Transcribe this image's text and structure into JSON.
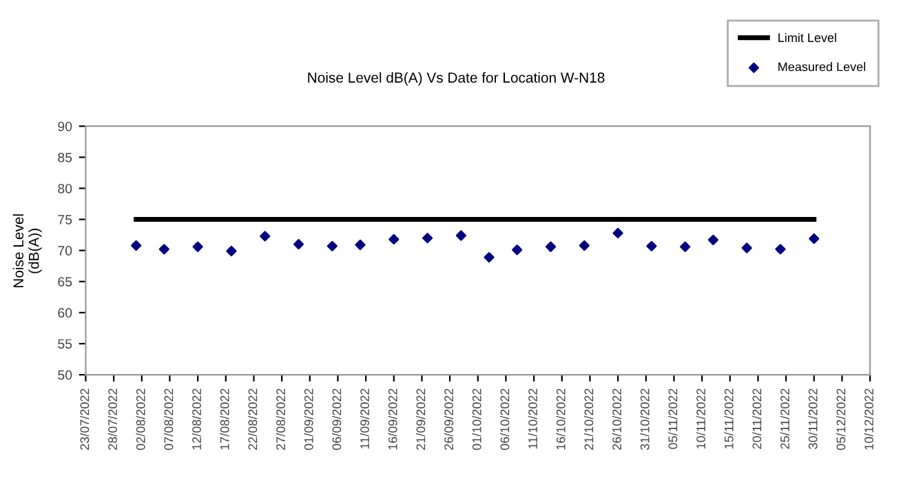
{
  "chart_data": {
    "type": "scatter",
    "title": "Noise Level dB(A) Vs Date for Location W-N18",
    "ylabel": "Noise Level\n(dB(A))",
    "series": [
      {
        "name": "Limit Level",
        "type": "line",
        "color": "#000000",
        "x": [
          "2022-08-01",
          "2022-11-30"
        ],
        "values": [
          75,
          75
        ]
      },
      {
        "name": "Measured Level",
        "color": "#000080",
        "marker": "diamond",
        "x": [
          "2022-08-01",
          "2022-08-06",
          "2022-08-12",
          "2022-08-18",
          "2022-08-24",
          "2022-08-30",
          "2022-09-05",
          "2022-09-10",
          "2022-09-16",
          "2022-09-22",
          "2022-09-28",
          "2022-10-03",
          "2022-10-08",
          "2022-10-14",
          "2022-10-20",
          "2022-10-26",
          "2022-11-01",
          "2022-11-07",
          "2022-11-12",
          "2022-11-18",
          "2022-11-24",
          "2022-11-30"
        ],
        "values": [
          70.8,
          70.2,
          70.6,
          69.9,
          72.3,
          71.0,
          70.7,
          70.9,
          71.8,
          72.0,
          72.4,
          68.9,
          70.1,
          70.6,
          70.8,
          72.8,
          70.7,
          70.6,
          71.7,
          70.4,
          70.2,
          71.9
        ]
      }
    ],
    "xlim": [
      "2022-07-23",
      "2022-12-10"
    ],
    "xticks": [
      {
        "value": "2022-07-23",
        "label": "23/07/2022"
      },
      {
        "value": "2022-07-28",
        "label": "28/07/2022"
      },
      {
        "value": "2022-08-02",
        "label": "02/08/2022"
      },
      {
        "value": "2022-08-07",
        "label": "07/08/2022"
      },
      {
        "value": "2022-08-12",
        "label": "12/08/2022"
      },
      {
        "value": "2022-08-17",
        "label": "17/08/2022"
      },
      {
        "value": "2022-08-22",
        "label": "22/08/2022"
      },
      {
        "value": "2022-08-27",
        "label": "27/08/2022"
      },
      {
        "value": "2022-09-01",
        "label": "01/09/2022"
      },
      {
        "value": "2022-09-06",
        "label": "06/09/2022"
      },
      {
        "value": "2022-09-11",
        "label": "11/09/2022"
      },
      {
        "value": "2022-09-16",
        "label": "16/09/2022"
      },
      {
        "value": "2022-09-21",
        "label": "21/09/2022"
      },
      {
        "value": "2022-09-26",
        "label": "26/09/2022"
      },
      {
        "value": "2022-10-01",
        "label": "01/10/2022"
      },
      {
        "value": "2022-10-06",
        "label": "06/10/2022"
      },
      {
        "value": "2022-10-11",
        "label": "11/10/2022"
      },
      {
        "value": "2022-10-16",
        "label": "16/10/2022"
      },
      {
        "value": "2022-10-21",
        "label": "21/10/2022"
      },
      {
        "value": "2022-10-26",
        "label": "26/10/2022"
      },
      {
        "value": "2022-10-31",
        "label": "31/10/2022"
      },
      {
        "value": "2022-11-05",
        "label": "05/11/2022"
      },
      {
        "value": "2022-11-10",
        "label": "10/11/2022"
      },
      {
        "value": "2022-11-15",
        "label": "15/11/2022"
      },
      {
        "value": "2022-11-20",
        "label": "20/11/2022"
      },
      {
        "value": "2022-11-25",
        "label": "25/11/2022"
      },
      {
        "value": "2022-11-30",
        "label": "30/11/2022"
      },
      {
        "value": "2022-12-05",
        "label": "05/12/2022"
      },
      {
        "value": "2022-12-10",
        "label": "10/12/2022"
      }
    ],
    "ylim": [
      50,
      90
    ],
    "yticks": [
      50,
      55,
      60,
      65,
      70,
      75,
      80,
      85,
      90
    ],
    "legend": "top right"
  }
}
